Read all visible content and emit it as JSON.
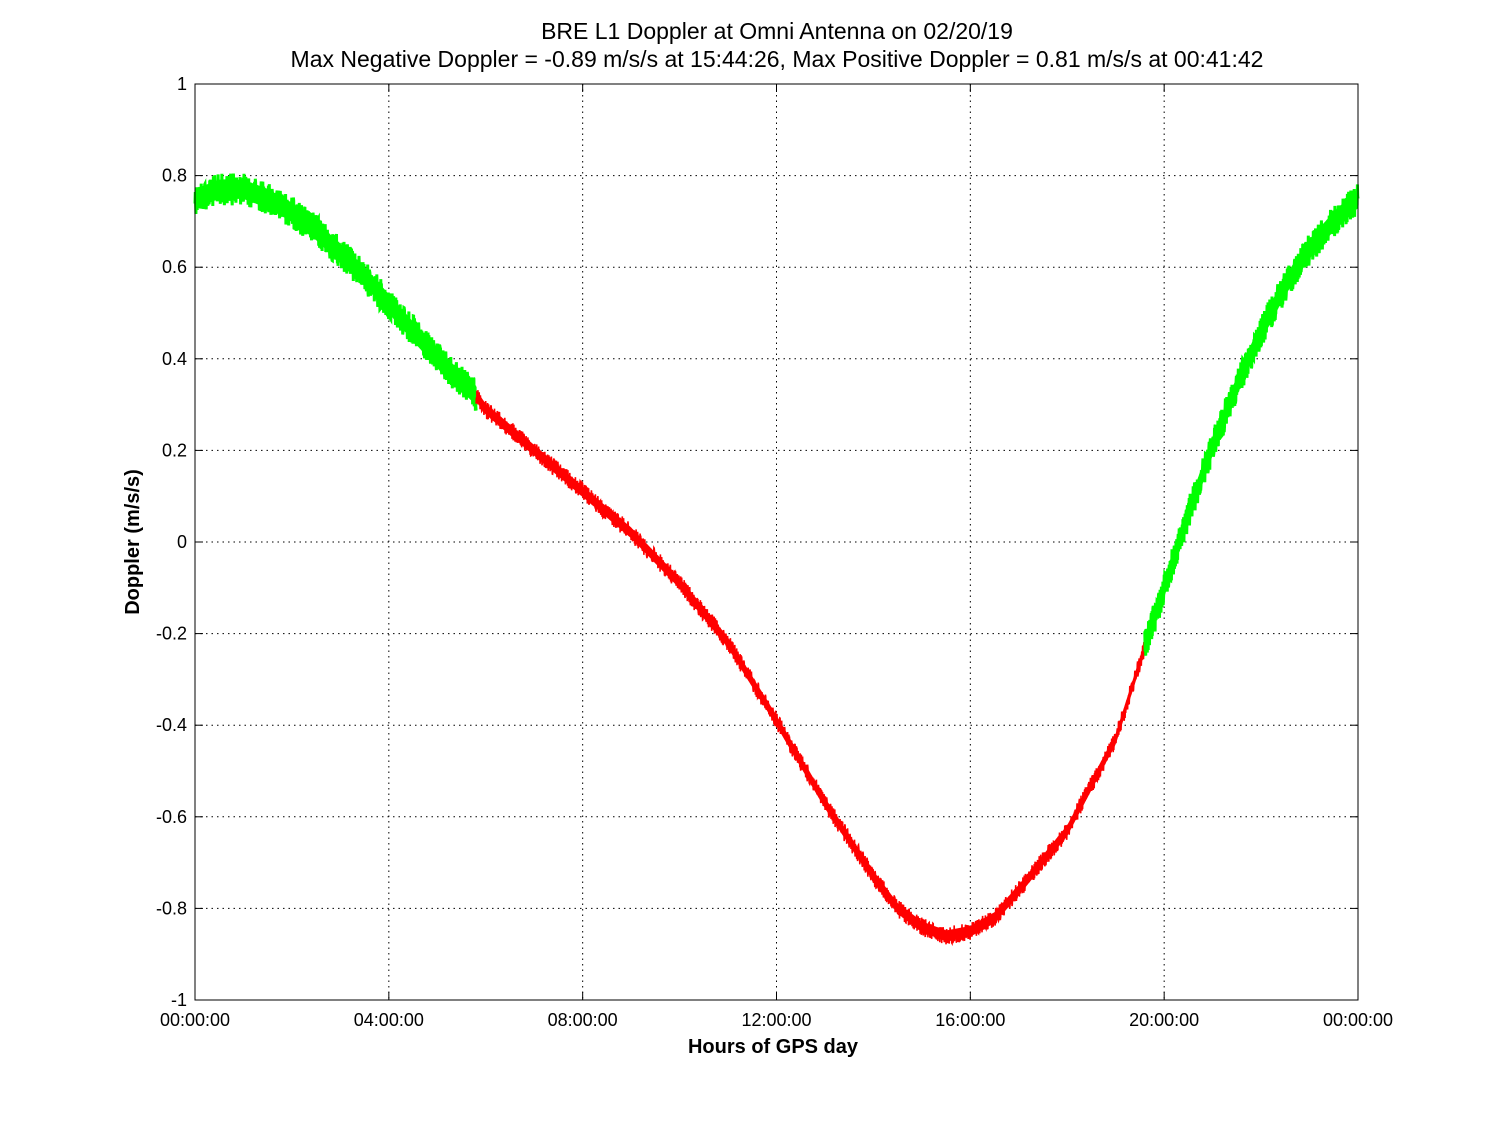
{
  "chart_data": {
    "type": "line",
    "title": "BRE  L1 Doppler at Omni Antenna on 02/20/19",
    "subtitle": "Max Negative Doppler = -0.89 m/s/s  at 15:44:26,   Max Positive Doppler = 0.81 m/s/s  at 00:41:42",
    "xlabel": "Hours of GPS day",
    "ylabel": "Doppler (m/s/s)",
    "xlim": [
      0,
      24
    ],
    "ylim": [
      -1,
      1
    ],
    "x_ticks": [
      0,
      4,
      8,
      12,
      16,
      20,
      24
    ],
    "x_tick_labels": [
      "00:00:00",
      "04:00:00",
      "08:00:00",
      "12:00:00",
      "16:00:00",
      "20:00:00",
      "00:00:00"
    ],
    "y_ticks": [
      -1,
      -0.8,
      -0.6,
      -0.4,
      -0.2,
      0,
      0.2,
      0.4,
      0.6,
      0.8,
      1
    ],
    "y_tick_labels": [
      "-1",
      "-0.8",
      "-0.6",
      "-0.4",
      "-0.2",
      "0",
      "0.2",
      "0.4",
      "0.6",
      "0.8",
      "1"
    ],
    "grid": true,
    "legend": "none",
    "segment_colors": {
      "green": "#00ff00",
      "red": "#ff0000"
    },
    "segments": [
      {
        "color": "green",
        "x": [
          0,
          0.5,
          0.7,
          1,
          1.5,
          2,
          2.5,
          3,
          3.5,
          4,
          4.5,
          5,
          5.5,
          5.8
        ],
        "y": [
          0.75,
          0.77,
          0.77,
          0.77,
          0.75,
          0.72,
          0.68,
          0.63,
          0.58,
          0.52,
          0.46,
          0.4,
          0.35,
          0.32
        ]
      },
      {
        "color": "red",
        "x": [
          5.8,
          6,
          7,
          8,
          9,
          10,
          11,
          12,
          13,
          14,
          14.5,
          15,
          15.5,
          16,
          16.5,
          17,
          18,
          19,
          19.6
        ],
        "y": [
          0.32,
          0.29,
          0.2,
          0.11,
          0.02,
          -0.09,
          -0.22,
          -0.39,
          -0.57,
          -0.73,
          -0.8,
          -0.84,
          -0.86,
          -0.85,
          -0.82,
          -0.76,
          -0.63,
          -0.43,
          -0.23
        ]
      },
      {
        "color": "green",
        "x": [
          19.6,
          20,
          20.5,
          21,
          21.5,
          22,
          22.5,
          23,
          23.5,
          24
        ],
        "y": [
          -0.23,
          -0.1,
          0.06,
          0.21,
          0.34,
          0.46,
          0.56,
          0.64,
          0.7,
          0.75
        ]
      }
    ]
  }
}
